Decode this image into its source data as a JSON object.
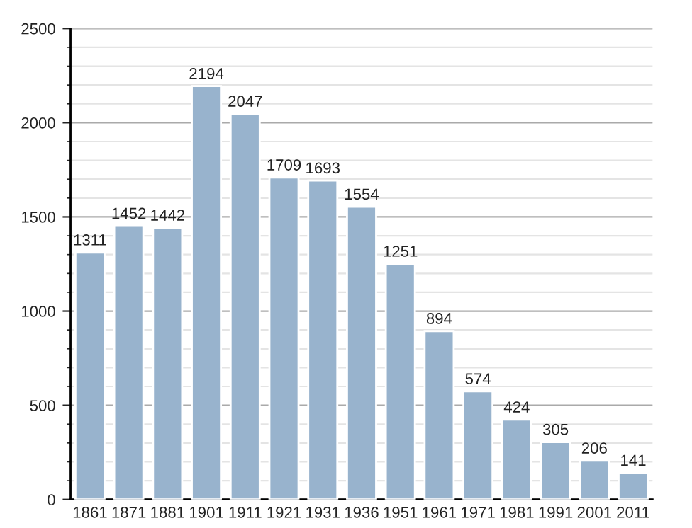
{
  "chart_data": {
    "type": "bar",
    "categories": [
      "1861",
      "1871",
      "1881",
      "1901",
      "1911",
      "1921",
      "1931",
      "1936",
      "1951",
      "1961",
      "1971",
      "1981",
      "1991",
      "2001",
      "2011"
    ],
    "values": [
      1311,
      1452,
      1442,
      2194,
      2047,
      1709,
      1693,
      1554,
      1251,
      894,
      574,
      424,
      305,
      206,
      141
    ],
    "color": "#98b3cd",
    "ylim": [
      0,
      2500
    ],
    "yticks": [
      0,
      500,
      1000,
      1500,
      2000,
      2500
    ],
    "grid": "y",
    "data_labels": true
  }
}
